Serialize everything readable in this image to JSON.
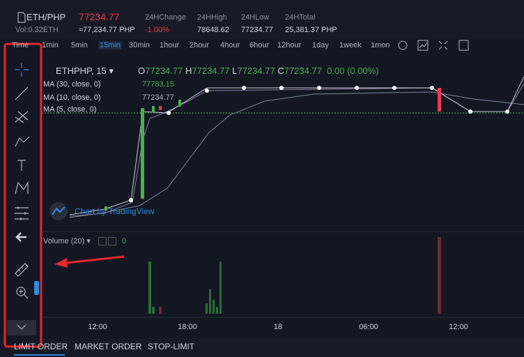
{
  "header": {
    "pair": "ETH/PHP",
    "price": "77234.77",
    "volume": "Vol:0.32ETH",
    "approx": "≈77,234.77 PHP",
    "stats": [
      {
        "label": "24HChange",
        "value": "-1.00%"
      },
      {
        "label": "24HHigh",
        "value": "78648.62"
      },
      {
        "label": "24HLow",
        "value": "77234.77"
      },
      {
        "label": "24HTotal",
        "value": "25,381.37 PHP"
      }
    ]
  },
  "intervals": [
    "Time",
    "1min",
    "5min",
    "15min",
    "30min",
    "1hour",
    "2hour",
    "4hour",
    "6hour",
    "12hour",
    "1day",
    "1week",
    "1mon"
  ],
  "legend": {
    "symbol": "ETHPHP, 15",
    "o_label": "O",
    "o": "77234.77",
    "h_label": "H",
    "h": "77234.77",
    "l_label": "L",
    "l": "77234.77",
    "c_label": "C",
    "c": "77234.77",
    "change": "0.00 (0.00%)"
  },
  "studies": [
    {
      "name": "MA (30, close, 0)",
      "value": "77783.15"
    },
    {
      "name": "MA (10, close, 0)",
      "value": "77234.77"
    },
    {
      "name": "MA (5, close, 0)"
    }
  ],
  "watermark": "Chart by TradingView",
  "volume": {
    "name": "Volume (20)",
    "value": "0"
  },
  "time_axis": [
    "12:00",
    "18:00",
    "18",
    "06:00",
    "12:00"
  ],
  "tabs": [
    "LIMIT ORDER",
    "MARKET ORDER",
    "STOP-LIMIT"
  ]
}
